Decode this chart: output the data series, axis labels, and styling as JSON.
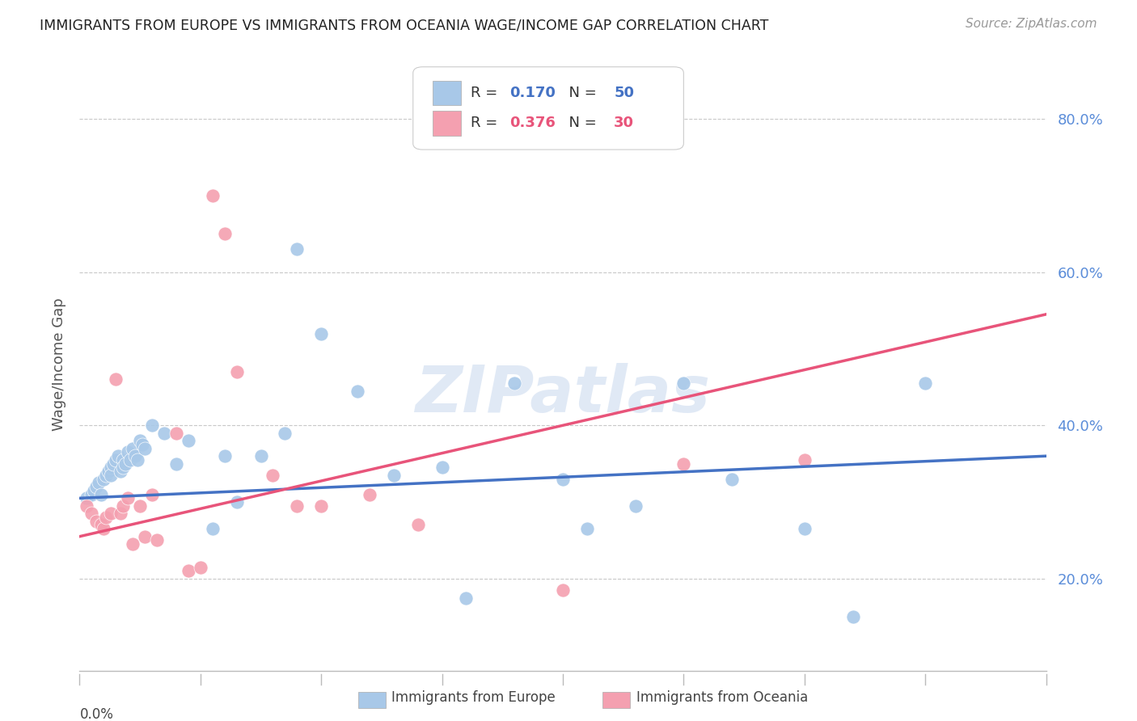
{
  "title": "IMMIGRANTS FROM EUROPE VS IMMIGRANTS FROM OCEANIA WAGE/INCOME GAP CORRELATION CHART",
  "source": "Source: ZipAtlas.com",
  "ylabel": "Wage/Income Gap",
  "ytick_values": [
    0.2,
    0.4,
    0.6,
    0.8
  ],
  "xmin": 0.0,
  "xmax": 0.4,
  "ymin": 0.08,
  "ymax": 0.88,
  "europe_color": "#a8c8e8",
  "oceania_color": "#f4a0b0",
  "europe_line_color": "#4472c4",
  "oceania_line_color": "#e8547a",
  "europe_R": 0.17,
  "europe_N": 50,
  "oceania_R": 0.376,
  "oceania_N": 30,
  "watermark": "ZIPatlas",
  "background_color": "#ffffff",
  "grid_color": "#c8c8c8",
  "axis_label_color": "#5b8dd9",
  "europe_legend_label": "Immigrants from Europe",
  "oceania_legend_label": "Immigrants from Oceania",
  "europe_scatter_x": [
    0.003,
    0.005,
    0.006,
    0.007,
    0.008,
    0.009,
    0.01,
    0.011,
    0.012,
    0.013,
    0.013,
    0.014,
    0.015,
    0.016,
    0.017,
    0.018,
    0.018,
    0.019,
    0.02,
    0.021,
    0.022,
    0.023,
    0.024,
    0.025,
    0.026,
    0.027,
    0.03,
    0.035,
    0.04,
    0.045,
    0.055,
    0.06,
    0.065,
    0.075,
    0.085,
    0.09,
    0.1,
    0.115,
    0.13,
    0.15,
    0.16,
    0.18,
    0.2,
    0.21,
    0.23,
    0.25,
    0.27,
    0.3,
    0.32,
    0.35
  ],
  "europe_scatter_y": [
    0.305,
    0.31,
    0.315,
    0.32,
    0.325,
    0.31,
    0.33,
    0.335,
    0.34,
    0.345,
    0.335,
    0.35,
    0.355,
    0.36,
    0.34,
    0.355,
    0.345,
    0.35,
    0.365,
    0.355,
    0.37,
    0.36,
    0.355,
    0.38,
    0.375,
    0.37,
    0.4,
    0.39,
    0.35,
    0.38,
    0.265,
    0.36,
    0.3,
    0.36,
    0.39,
    0.63,
    0.52,
    0.445,
    0.335,
    0.345,
    0.175,
    0.455,
    0.33,
    0.265,
    0.295,
    0.455,
    0.33,
    0.265,
    0.15,
    0.455
  ],
  "oceania_scatter_x": [
    0.003,
    0.005,
    0.007,
    0.009,
    0.01,
    0.011,
    0.013,
    0.015,
    0.017,
    0.018,
    0.02,
    0.022,
    0.025,
    0.027,
    0.03,
    0.032,
    0.04,
    0.045,
    0.05,
    0.055,
    0.06,
    0.065,
    0.08,
    0.09,
    0.1,
    0.12,
    0.14,
    0.2,
    0.25,
    0.3
  ],
  "oceania_scatter_y": [
    0.295,
    0.285,
    0.275,
    0.27,
    0.265,
    0.28,
    0.285,
    0.46,
    0.285,
    0.295,
    0.305,
    0.245,
    0.295,
    0.255,
    0.31,
    0.25,
    0.39,
    0.21,
    0.215,
    0.7,
    0.65,
    0.47,
    0.335,
    0.295,
    0.295,
    0.31,
    0.27,
    0.185,
    0.35,
    0.355
  ],
  "europe_trend_x": [
    0.0,
    0.4
  ],
  "europe_trend_y": [
    0.305,
    0.36
  ],
  "oceania_trend_x": [
    0.0,
    0.4
  ],
  "oceania_trend_y": [
    0.255,
    0.545
  ]
}
